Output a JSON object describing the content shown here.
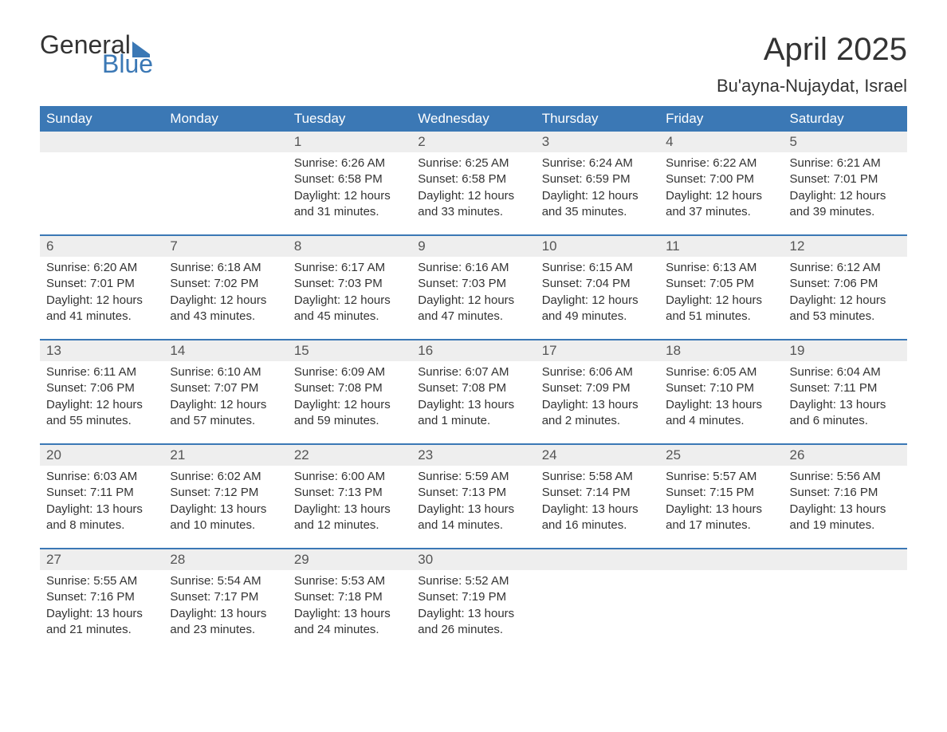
{
  "logo": {
    "general": "General",
    "blue": "Blue"
  },
  "header": {
    "month_title": "April 2025",
    "location": "Bu'ayna-Nujaydat, Israel"
  },
  "colors": {
    "accent": "#3b78b5",
    "header_text": "#ffffff",
    "day_num_bg": "#eeeeee",
    "text": "#333333",
    "muted": "#555555",
    "background": "#ffffff"
  },
  "typography": {
    "font_family": "Arial, Helvetica, sans-serif",
    "month_title_fontsize": 40,
    "location_fontsize": 22,
    "day_header_fontsize": 17,
    "day_num_fontsize": 17,
    "body_fontsize": 15,
    "logo_fontsize": 32
  },
  "day_names": [
    "Sunday",
    "Monday",
    "Tuesday",
    "Wednesday",
    "Thursday",
    "Friday",
    "Saturday"
  ],
  "weeks": [
    [
      {
        "empty": true
      },
      {
        "empty": true
      },
      {
        "num": "1",
        "sunrise": "6:26 AM",
        "sunset": "6:58 PM",
        "daylight_h": "12",
        "daylight_m": "31"
      },
      {
        "num": "2",
        "sunrise": "6:25 AM",
        "sunset": "6:58 PM",
        "daylight_h": "12",
        "daylight_m": "33"
      },
      {
        "num": "3",
        "sunrise": "6:24 AM",
        "sunset": "6:59 PM",
        "daylight_h": "12",
        "daylight_m": "35"
      },
      {
        "num": "4",
        "sunrise": "6:22 AM",
        "sunset": "7:00 PM",
        "daylight_h": "12",
        "daylight_m": "37"
      },
      {
        "num": "5",
        "sunrise": "6:21 AM",
        "sunset": "7:01 PM",
        "daylight_h": "12",
        "daylight_m": "39"
      }
    ],
    [
      {
        "num": "6",
        "sunrise": "6:20 AM",
        "sunset": "7:01 PM",
        "daylight_h": "12",
        "daylight_m": "41"
      },
      {
        "num": "7",
        "sunrise": "6:18 AM",
        "sunset": "7:02 PM",
        "daylight_h": "12",
        "daylight_m": "43"
      },
      {
        "num": "8",
        "sunrise": "6:17 AM",
        "sunset": "7:03 PM",
        "daylight_h": "12",
        "daylight_m": "45"
      },
      {
        "num": "9",
        "sunrise": "6:16 AM",
        "sunset": "7:03 PM",
        "daylight_h": "12",
        "daylight_m": "47"
      },
      {
        "num": "10",
        "sunrise": "6:15 AM",
        "sunset": "7:04 PM",
        "daylight_h": "12",
        "daylight_m": "49"
      },
      {
        "num": "11",
        "sunrise": "6:13 AM",
        "sunset": "7:05 PM",
        "daylight_h": "12",
        "daylight_m": "51"
      },
      {
        "num": "12",
        "sunrise": "6:12 AM",
        "sunset": "7:06 PM",
        "daylight_h": "12",
        "daylight_m": "53"
      }
    ],
    [
      {
        "num": "13",
        "sunrise": "6:11 AM",
        "sunset": "7:06 PM",
        "daylight_h": "12",
        "daylight_m": "55"
      },
      {
        "num": "14",
        "sunrise": "6:10 AM",
        "sunset": "7:07 PM",
        "daylight_h": "12",
        "daylight_m": "57"
      },
      {
        "num": "15",
        "sunrise": "6:09 AM",
        "sunset": "7:08 PM",
        "daylight_h": "12",
        "daylight_m": "59"
      },
      {
        "num": "16",
        "sunrise": "6:07 AM",
        "sunset": "7:08 PM",
        "daylight_h": "13",
        "daylight_m": "1",
        "minute_word": "minute"
      },
      {
        "num": "17",
        "sunrise": "6:06 AM",
        "sunset": "7:09 PM",
        "daylight_h": "13",
        "daylight_m": "2"
      },
      {
        "num": "18",
        "sunrise": "6:05 AM",
        "sunset": "7:10 PM",
        "daylight_h": "13",
        "daylight_m": "4"
      },
      {
        "num": "19",
        "sunrise": "6:04 AM",
        "sunset": "7:11 PM",
        "daylight_h": "13",
        "daylight_m": "6"
      }
    ],
    [
      {
        "num": "20",
        "sunrise": "6:03 AM",
        "sunset": "7:11 PM",
        "daylight_h": "13",
        "daylight_m": "8"
      },
      {
        "num": "21",
        "sunrise": "6:02 AM",
        "sunset": "7:12 PM",
        "daylight_h": "13",
        "daylight_m": "10"
      },
      {
        "num": "22",
        "sunrise": "6:00 AM",
        "sunset": "7:13 PM",
        "daylight_h": "13",
        "daylight_m": "12"
      },
      {
        "num": "23",
        "sunrise": "5:59 AM",
        "sunset": "7:13 PM",
        "daylight_h": "13",
        "daylight_m": "14"
      },
      {
        "num": "24",
        "sunrise": "5:58 AM",
        "sunset": "7:14 PM",
        "daylight_h": "13",
        "daylight_m": "16"
      },
      {
        "num": "25",
        "sunrise": "5:57 AM",
        "sunset": "7:15 PM",
        "daylight_h": "13",
        "daylight_m": "17"
      },
      {
        "num": "26",
        "sunrise": "5:56 AM",
        "sunset": "7:16 PM",
        "daylight_h": "13",
        "daylight_m": "19"
      }
    ],
    [
      {
        "num": "27",
        "sunrise": "5:55 AM",
        "sunset": "7:16 PM",
        "daylight_h": "13",
        "daylight_m": "21"
      },
      {
        "num": "28",
        "sunrise": "5:54 AM",
        "sunset": "7:17 PM",
        "daylight_h": "13",
        "daylight_m": "23"
      },
      {
        "num": "29",
        "sunrise": "5:53 AM",
        "sunset": "7:18 PM",
        "daylight_h": "13",
        "daylight_m": "24"
      },
      {
        "num": "30",
        "sunrise": "5:52 AM",
        "sunset": "7:19 PM",
        "daylight_h": "13",
        "daylight_m": "26"
      },
      {
        "empty": true
      },
      {
        "empty": true
      },
      {
        "empty": true
      }
    ]
  ],
  "labels": {
    "sunrise_prefix": "Sunrise: ",
    "sunset_prefix": "Sunset: ",
    "daylight_prefix": "Daylight: ",
    "hours_word": " hours",
    "and_word": "and ",
    "minutes_word": " minutes.",
    "minute_word_singular": " minute."
  }
}
